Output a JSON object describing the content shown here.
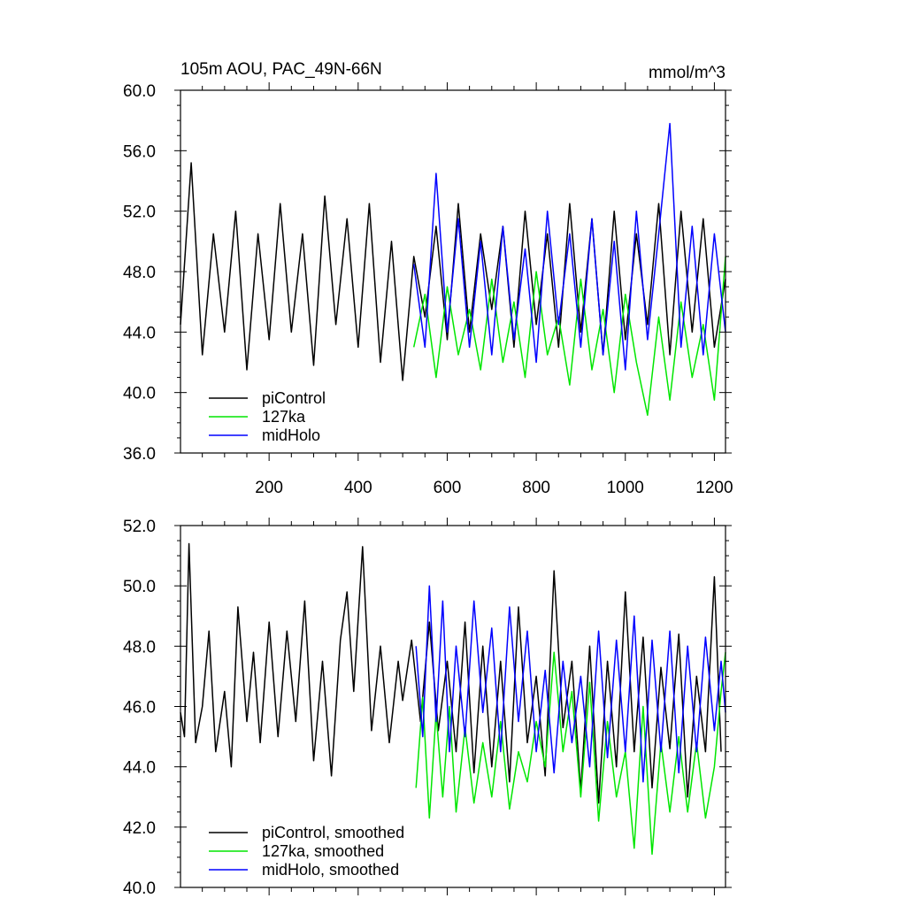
{
  "chart_data": [
    {
      "type": "line",
      "title": "105m AOU, PAC_49N-66N",
      "units": "mmol/m^3",
      "xlabel": "",
      "ylabel": "",
      "xlim": [
        1,
        1225
      ],
      "ylim": [
        36,
        60
      ],
      "x_ticks": [
        200,
        400,
        600,
        800,
        1000,
        1200
      ],
      "x_tick_labels": [
        "200",
        "400",
        "600",
        "800",
        "1000",
        "1200"
      ],
      "y_ticks": [
        36,
        40,
        44,
        48,
        52,
        56,
        60
      ],
      "y_tick_labels": [
        "36.0",
        "40.0",
        "44.0",
        "48.0",
        "52.0",
        "56.0",
        "60.0"
      ],
      "legend_position": "bottom-left",
      "series": [
        {
          "name": "piControl",
          "color": "#000000",
          "x": [
            1,
            25,
            50,
            75,
            100,
            125,
            150,
            175,
            200,
            225,
            250,
            275,
            300,
            325,
            350,
            375,
            400,
            425,
            450,
            475,
            500,
            525,
            550,
            575,
            600,
            625,
            650,
            675,
            700,
            725,
            750,
            775,
            800,
            825,
            850,
            875,
            900,
            925,
            950,
            975,
            1000,
            1025,
            1050,
            1075,
            1100,
            1125,
            1150,
            1175,
            1200,
            1225
          ],
          "values": [
            44.5,
            55.2,
            42.5,
            50.5,
            44.0,
            52.0,
            41.5,
            50.5,
            43.5,
            52.5,
            44.0,
            50.5,
            41.8,
            53.0,
            44.5,
            51.5,
            43.0,
            52.5,
            42.0,
            50.0,
            40.8,
            49.0,
            45.0,
            51.0,
            43.5,
            52.5,
            44.0,
            50.5,
            45.5,
            51.0,
            43.0,
            52.0,
            44.5,
            50.5,
            43.0,
            52.5,
            44.0,
            51.5,
            42.5,
            52.0,
            43.5,
            50.5,
            44.5,
            52.5,
            42.5,
            52.0,
            44.0,
            51.5,
            43.0,
            47.5
          ]
        },
        {
          "name": "127ka",
          "color": "#00e600",
          "x": [
            525,
            550,
            575,
            600,
            625,
            650,
            675,
            700,
            725,
            750,
            775,
            800,
            825,
            850,
            875,
            900,
            925,
            950,
            975,
            1000,
            1025,
            1050,
            1075,
            1100,
            1125,
            1150,
            1175,
            1200,
            1225
          ],
          "values": [
            43.0,
            46.5,
            41.0,
            47.0,
            42.5,
            45.5,
            41.5,
            47.5,
            42.0,
            46.0,
            41.0,
            48.0,
            42.5,
            45.0,
            40.5,
            47.5,
            41.5,
            45.5,
            40.0,
            46.5,
            42.0,
            38.5,
            45.0,
            39.5,
            46.0,
            41.0,
            44.5,
            39.5,
            49.0
          ]
        },
        {
          "name": "midHolo",
          "color": "#0000ff",
          "x": [
            525,
            550,
            575,
            600,
            625,
            650,
            675,
            700,
            725,
            750,
            775,
            800,
            825,
            850,
            875,
            900,
            925,
            950,
            975,
            1000,
            1025,
            1050,
            1075,
            1100,
            1125,
            1150,
            1175,
            1200,
            1225
          ],
          "values": [
            48.5,
            43.0,
            54.5,
            44.0,
            51.5,
            43.0,
            50.0,
            42.5,
            51.0,
            43.5,
            49.5,
            42.0,
            52.0,
            44.5,
            50.5,
            43.0,
            51.5,
            42.5,
            50.0,
            41.5,
            52.0,
            43.5,
            50.5,
            57.8,
            43.0,
            51.0,
            42.5,
            50.5,
            44.0
          ]
        }
      ]
    },
    {
      "type": "line",
      "title": "",
      "xlabel": "",
      "ylabel": "",
      "xlim": [
        1,
        1225
      ],
      "ylim": [
        40,
        52
      ],
      "x_ticks": [
        200,
        400,
        600,
        800,
        1000,
        1200
      ],
      "y_ticks": [
        40,
        42,
        44,
        46,
        48,
        50,
        52
      ],
      "y_tick_labels": [
        "40.0",
        "42.0",
        "44.0",
        "46.0",
        "48.0",
        "50.0",
        "52.0"
      ],
      "legend_position": "bottom-left",
      "series": [
        {
          "name": "piControl, smoothed",
          "color": "#000000",
          "x": [
            1,
            10,
            20,
            35,
            50,
            65,
            80,
            100,
            115,
            130,
            150,
            165,
            180,
            200,
            220,
            240,
            260,
            280,
            300,
            320,
            340,
            360,
            375,
            390,
            410,
            430,
            450,
            470,
            490,
            500,
            520,
            540,
            560,
            580,
            600,
            620,
            640,
            660,
            680,
            700,
            720,
            740,
            760,
            780,
            800,
            820,
            840,
            860,
            880,
            900,
            920,
            940,
            960,
            980,
            1000,
            1020,
            1040,
            1060,
            1080,
            1100,
            1120,
            1140,
            1160,
            1180,
            1200,
            1215
          ],
          "values": [
            45.8,
            45.0,
            51.4,
            44.8,
            46.0,
            48.5,
            44.5,
            46.5,
            44.0,
            49.3,
            45.5,
            47.8,
            44.8,
            48.8,
            45.0,
            48.5,
            45.5,
            49.5,
            44.2,
            47.5,
            43.7,
            48.2,
            49.8,
            46.5,
            51.3,
            45.2,
            48.0,
            44.8,
            47.5,
            46.2,
            48.2,
            45.5,
            48.8,
            45.2,
            47.5,
            44.5,
            48.8,
            43.8,
            48.0,
            44.0,
            47.5,
            43.5,
            49.3,
            44.8,
            47.0,
            43.7,
            50.5,
            45.3,
            47.5,
            43.2,
            48.0,
            42.8,
            47.5,
            44.0,
            49.8,
            44.5,
            48.3,
            43.3,
            47.3,
            44.6,
            48.4,
            43.0,
            47.0,
            44.5,
            50.3,
            44.5
          ]
        },
        {
          "name": "127ka, smoothed",
          "color": "#00e600",
          "x": [
            530,
            545,
            560,
            575,
            590,
            605,
            620,
            640,
            660,
            680,
            700,
            720,
            740,
            760,
            780,
            800,
            820,
            840,
            860,
            880,
            900,
            920,
            940,
            960,
            980,
            1000,
            1020,
            1040,
            1060,
            1080,
            1100,
            1120,
            1140,
            1160,
            1180,
            1200,
            1215,
            1225
          ],
          "values": [
            43.3,
            46.3,
            42.3,
            45.8,
            43.0,
            46.0,
            42.5,
            45.3,
            42.8,
            44.8,
            43.0,
            45.5,
            42.6,
            44.5,
            43.5,
            45.5,
            44.0,
            47.8,
            44.5,
            46.5,
            43.0,
            46.8,
            42.2,
            45.5,
            43.0,
            44.5,
            41.3,
            46.0,
            41.1,
            44.8,
            42.5,
            45.0,
            42.5,
            44.8,
            42.3,
            44.0,
            46.5,
            47.8
          ]
        },
        {
          "name": "midHolo, smoothed",
          "color": "#0000ff",
          "x": [
            530,
            545,
            560,
            575,
            590,
            605,
            620,
            640,
            660,
            680,
            700,
            720,
            740,
            760,
            780,
            800,
            820,
            840,
            860,
            880,
            900,
            920,
            940,
            960,
            980,
            1000,
            1020,
            1040,
            1060,
            1080,
            1100,
            1120,
            1140,
            1160,
            1180,
            1200,
            1215,
            1225
          ],
          "values": [
            48.0,
            45.0,
            50.0,
            45.5,
            49.5,
            44.5,
            48.0,
            45.0,
            49.5,
            45.8,
            48.6,
            44.5,
            49.3,
            45.5,
            48.5,
            44.5,
            47.2,
            43.8,
            47.5,
            44.8,
            47.0,
            44.0,
            48.5,
            44.3,
            48.2,
            44.5,
            49.0,
            43.5,
            48.2,
            44.5,
            48.5,
            43.8,
            48.0,
            44.5,
            48.3,
            45.2,
            47.5,
            45.8
          ]
        }
      ]
    }
  ]
}
